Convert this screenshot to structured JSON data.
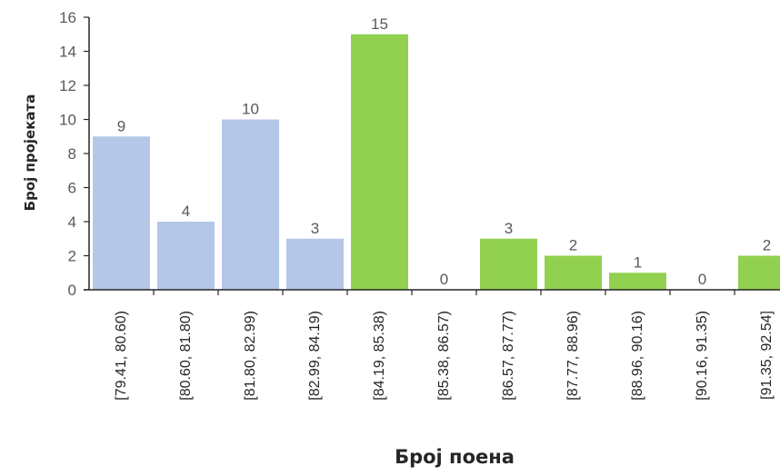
{
  "chart_data": {
    "type": "bar",
    "categories": [
      "[79.41, 80.60)",
      "[80.60, 81.80)",
      "[81.80, 82.99)",
      "[82.99, 84.19)",
      "[84.19, 85.38)",
      "[85.38, 86.57)",
      "[86.57, 87.77)",
      "[87.77, 88.96)",
      "[88.96, 90.16)",
      "[90.16, 91.35)",
      "[91.35, 92.54]"
    ],
    "values": [
      9,
      4,
      10,
      3,
      15,
      0,
      3,
      2,
      1,
      0,
      2
    ],
    "bar_colors": [
      "#b4c7e7",
      "#b4c7e7",
      "#b4c7e7",
      "#b4c7e7",
      "#92d050",
      "#92d050",
      "#92d050",
      "#92d050",
      "#92d050",
      "#92d050",
      "#92d050"
    ],
    "title": "",
    "xlabel": "Број поена",
    "ylabel": "Број пројеката",
    "ylim": [
      0,
      16
    ],
    "yticks": [
      "0",
      "2",
      "4",
      "6",
      "8",
      "10",
      "12",
      "14",
      "16"
    ],
    "grid": false,
    "data_labels": true
  }
}
